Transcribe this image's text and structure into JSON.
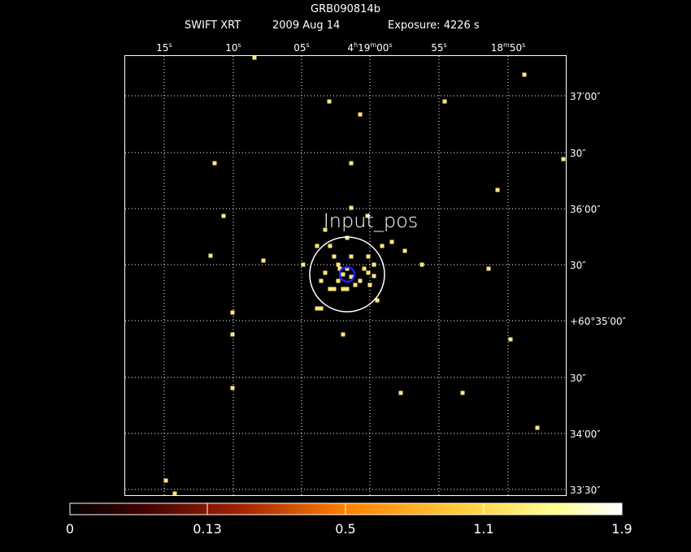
{
  "header": {
    "title": "GRB090814b",
    "instrument": "SWIFT XRT",
    "date": "2009 Aug 14",
    "exposure": "Exposure: 4226 s"
  },
  "ra_labels": [
    [
      "15",
      "s"
    ],
    [
      "10",
      "s"
    ],
    [
      "05",
      "s"
    ],
    [
      "4",
      "h",
      "19",
      "m",
      "00",
      "s"
    ],
    [
      "55",
      "s"
    ],
    [
      "18",
      "m",
      "50",
      "s"
    ]
  ],
  "dec_labels": [
    "37′00″",
    "30″",
    "36′00″",
    "30″",
    "+60°35′00″",
    "30″",
    "34′00″",
    "33′30″"
  ],
  "region_label": "Input_pos",
  "colorbar_labels": [
    "0",
    "0.13",
    "0.5",
    "1.1",
    "1.9"
  ]
}
